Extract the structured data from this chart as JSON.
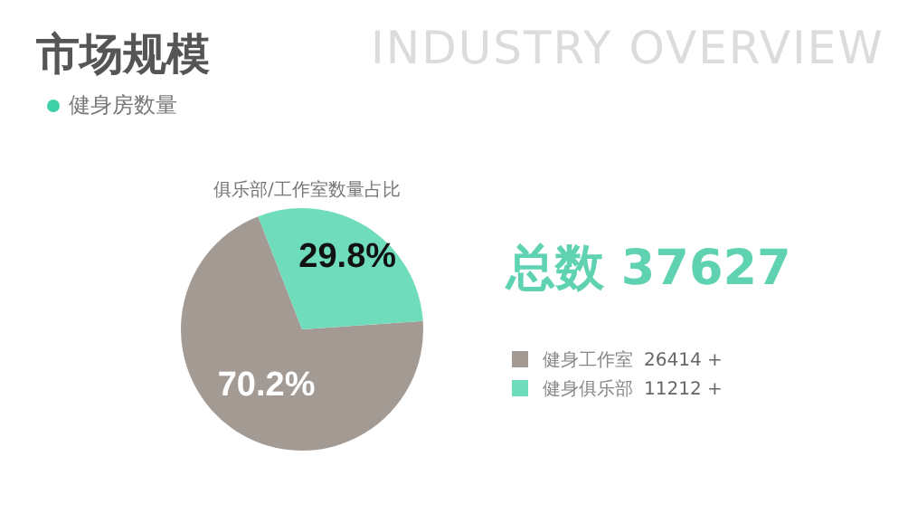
{
  "chart_data": {
    "type": "pie",
    "title": "市场规模",
    "subtitle": "健身房数量",
    "annotations": [
      "INDUSTRY OVERVIEW",
      "俱乐部/工作室数量占比",
      "总数 37627",
      "26414 +",
      "11212 +"
    ],
    "categories": [
      "健身工作室",
      "健身俱乐部"
    ],
    "values": [
      70.2,
      29.8
    ],
    "value_labels": [
      "70.2%",
      "29.8%"
    ],
    "colors": [
      "#a39a93",
      "#6fdcbc"
    ],
    "legend": "right"
  }
}
